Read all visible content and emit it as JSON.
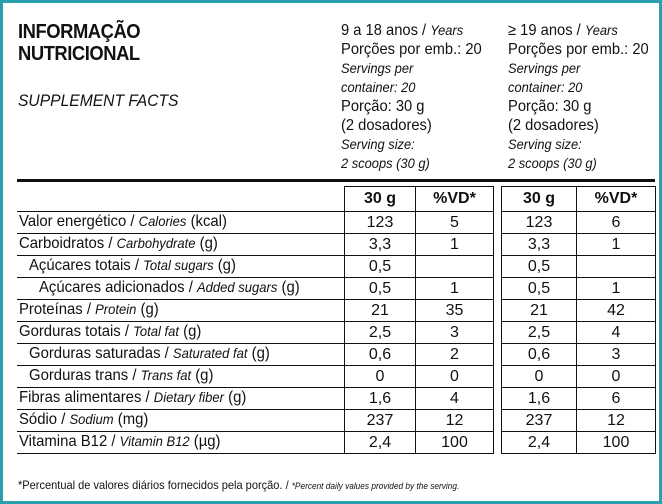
{
  "header": {
    "title": [
      "INFORMAÇÃO",
      "NUTRICIONAL"
    ],
    "subtitle": "SUPPLEMENT FACTS",
    "groups": [
      {
        "age_pt": "9 a 18 anos /",
        "age_en": "Years",
        "servings_pt": "Porções por emb.: 20",
        "servings_en": [
          "Servings per",
          "container: 20"
        ],
        "portion_pt": [
          "Porção: 30 g",
          "(2 dosadores)"
        ],
        "portion_en": [
          "Serving size:",
          "2 scoops (30 g)"
        ]
      },
      {
        "age_pt": "≥ 19 anos /",
        "age_en": "Years",
        "servings_pt": "Porções por emb.: 20",
        "servings_en": [
          "Servings per",
          "container: 20"
        ],
        "portion_pt": [
          "Porção: 30 g",
          "(2 dosadores)"
        ],
        "portion_en": [
          "Serving size:",
          "2 scoops (30 g)"
        ]
      }
    ]
  },
  "table": {
    "columns": [
      [
        "30 g",
        "%VD*"
      ],
      [
        "30 g",
        "%VD*"
      ]
    ],
    "rows": [
      {
        "pt": "Valor energético /",
        "en": "Calories",
        "unit": "(kcal)",
        "values": [
          "123",
          "5",
          "123",
          "6"
        ]
      },
      {
        "pt": "Carboidratos /",
        "en": "Carbohydrate",
        "unit": "(g)",
        "values": [
          "3,3",
          "1",
          "3,3",
          "1"
        ]
      },
      {
        "pt": "Açúcares totais /",
        "en": "Total sugars",
        "unit": "(g)",
        "values": [
          "0,5",
          null,
          "0,5",
          null
        ]
      },
      {
        "pt": "Açúcares adicionados /",
        "en": "Added sugars",
        "unit": "(g)",
        "values": [
          "0,5",
          "1",
          "0,5",
          "1"
        ]
      },
      {
        "pt": "Proteínas /",
        "en": "Protein",
        "unit": "(g)",
        "values": [
          "21",
          "35",
          "21",
          "42"
        ]
      },
      {
        "pt": "Gorduras totais /",
        "en": "Total fat",
        "unit": "(g)",
        "values": [
          "2,5",
          "3",
          "2,5",
          "4"
        ]
      },
      {
        "pt": "Gorduras saturadas /",
        "en": "Saturated fat",
        "unit": "(g)",
        "values": [
          "0,6",
          "2",
          "0,6",
          "3"
        ]
      },
      {
        "pt": "Gorduras trans /",
        "en": "Trans fat",
        "unit": "(g)",
        "values": [
          "0",
          "0",
          "0",
          "0"
        ]
      },
      {
        "pt": "Fibras alimentares /",
        "en": "Dietary fiber",
        "unit": "(g)",
        "values": [
          "1,6",
          "4",
          "1,6",
          "6"
        ]
      },
      {
        "pt": "Sódio /",
        "en": "Sodium",
        "unit": "(mg)",
        "values": [
          "237",
          "12",
          "237",
          "12"
        ]
      },
      {
        "pt": "Vitamina B12 /",
        "en": "Vitamin B12",
        "unit": "(µg)",
        "values": [
          "2,4",
          "100",
          "2,4",
          "100"
        ]
      }
    ]
  },
  "footnote": {
    "pt": "*Percentual de valores diários fornecidos pela porção. /",
    "en": "*Percent daily values provided by the serving."
  }
}
